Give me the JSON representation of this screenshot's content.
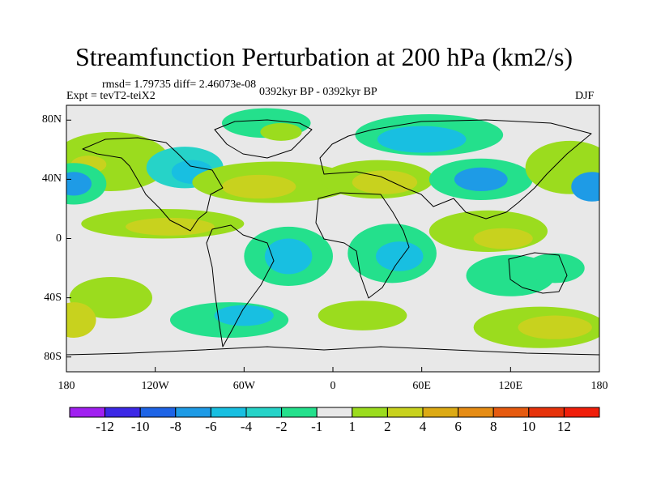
{
  "title": "Streamfunction Perturbation at 200 hPa (km2/s)",
  "stats_text": "rmsd= 1.79735 diff= 2.46073e-08",
  "expt_text": "Expt = tevT2-teiX2",
  "period_text": "0392kyr BP - 0392kyr BP",
  "season_text": "DJF",
  "axes": {
    "lat_ticks": [
      "80N",
      "40N",
      "0",
      "40S",
      "80S"
    ],
    "lon_ticks": [
      "180",
      "120W",
      "60W",
      "0",
      "60E",
      "120E",
      "180"
    ]
  },
  "colorbar": {
    "labels": [
      "-12",
      "-10",
      "-8",
      "-6",
      "-4",
      "-2",
      "-1",
      "1",
      "2",
      "4",
      "6",
      "8",
      "10",
      "12"
    ],
    "colors": [
      "#a020f0",
      "#3c28e6",
      "#1e64e6",
      "#1e9be6",
      "#18bfe1",
      "#26d3c8",
      "#24e08c",
      "#e8e8e8",
      "#9bdc1e",
      "#c8d21e",
      "#dcaa14",
      "#e68c14",
      "#e65a0f",
      "#e6320a",
      "#f01e0a"
    ]
  },
  "map_data": {
    "type": "filled-contour",
    "projection": "cylindrical-equidistant",
    "lon_range": [
      -180,
      180
    ],
    "lat_range": [
      -90,
      90
    ],
    "blobs": [
      {
        "lon": -45,
        "lat": 78,
        "rx": 30,
        "ry": 10,
        "color": "#24e08c"
      },
      {
        "lon": -35,
        "lat": 72,
        "rx": 14,
        "ry": 6,
        "color": "#9bdc1e"
      },
      {
        "lon": -150,
        "lat": 52,
        "rx": 40,
        "ry": 20,
        "color": "#9bdc1e"
      },
      {
        "lon": -165,
        "lat": 50,
        "rx": 12,
        "ry": 6,
        "color": "#c8d21e"
      },
      {
        "lon": -175,
        "lat": 37,
        "rx": 22,
        "ry": 14,
        "color": "#24e08c"
      },
      {
        "lon": -175,
        "lat": 37,
        "rx": 12,
        "ry": 8,
        "color": "#1e9be6"
      },
      {
        "lon": -100,
        "lat": 48,
        "rx": 26,
        "ry": 14,
        "color": "#26d3c8"
      },
      {
        "lon": -95,
        "lat": 45,
        "rx": 14,
        "ry": 8,
        "color": "#18bfe1"
      },
      {
        "lon": -40,
        "lat": 38,
        "rx": 55,
        "ry": 14,
        "color": "#9bdc1e"
      },
      {
        "lon": -50,
        "lat": 35,
        "rx": 25,
        "ry": 8,
        "color": "#c8d21e"
      },
      {
        "lon": 65,
        "lat": 70,
        "rx": 50,
        "ry": 14,
        "color": "#24e08c"
      },
      {
        "lon": 60,
        "lat": 67,
        "rx": 30,
        "ry": 9,
        "color": "#18bfe1"
      },
      {
        "lon": 30,
        "lat": 40,
        "rx": 38,
        "ry": 13,
        "color": "#9bdc1e"
      },
      {
        "lon": 35,
        "lat": 38,
        "rx": 22,
        "ry": 8,
        "color": "#c8d21e"
      },
      {
        "lon": 100,
        "lat": 40,
        "rx": 35,
        "ry": 14,
        "color": "#24e08c"
      },
      {
        "lon": 100,
        "lat": 40,
        "rx": 18,
        "ry": 8,
        "color": "#1e9be6"
      },
      {
        "lon": 160,
        "lat": 48,
        "rx": 30,
        "ry": 18,
        "color": "#9bdc1e"
      },
      {
        "lon": 175,
        "lat": 35,
        "rx": 14,
        "ry": 10,
        "color": "#1e9be6"
      },
      {
        "lon": -115,
        "lat": 10,
        "rx": 55,
        "ry": 10,
        "color": "#9bdc1e"
      },
      {
        "lon": -110,
        "lat": 8,
        "rx": 30,
        "ry": 6,
        "color": "#c8d21e"
      },
      {
        "lon": -30,
        "lat": -12,
        "rx": 30,
        "ry": 20,
        "color": "#24e08c"
      },
      {
        "lon": -30,
        "lat": -12,
        "rx": 16,
        "ry": 12,
        "color": "#18bfe1"
      },
      {
        "lon": 40,
        "lat": -10,
        "rx": 30,
        "ry": 20,
        "color": "#24e08c"
      },
      {
        "lon": 45,
        "lat": -12,
        "rx": 16,
        "ry": 10,
        "color": "#18bfe1"
      },
      {
        "lon": 105,
        "lat": 5,
        "rx": 40,
        "ry": 14,
        "color": "#9bdc1e"
      },
      {
        "lon": 115,
        "lat": 0,
        "rx": 20,
        "ry": 7,
        "color": "#c8d21e"
      },
      {
        "lon": 120,
        "lat": -25,
        "rx": 30,
        "ry": 14,
        "color": "#24e08c"
      },
      {
        "lon": 150,
        "lat": -20,
        "rx": 20,
        "ry": 10,
        "color": "#24e08c"
      },
      {
        "lon": -150,
        "lat": -40,
        "rx": 28,
        "ry": 14,
        "color": "#9bdc1e"
      },
      {
        "lon": -175,
        "lat": -55,
        "rx": 15,
        "ry": 12,
        "color": "#c8d21e"
      },
      {
        "lon": -70,
        "lat": -55,
        "rx": 40,
        "ry": 12,
        "color": "#24e08c"
      },
      {
        "lon": -60,
        "lat": -52,
        "rx": 20,
        "ry": 7,
        "color": "#18bfe1"
      },
      {
        "lon": 20,
        "lat": -52,
        "rx": 30,
        "ry": 10,
        "color": "#9bdc1e"
      },
      {
        "lon": 140,
        "lat": -60,
        "rx": 45,
        "ry": 14,
        "color": "#9bdc1e"
      },
      {
        "lon": 150,
        "lat": -60,
        "rx": 25,
        "ry": 8,
        "color": "#c8d21e"
      }
    ]
  }
}
